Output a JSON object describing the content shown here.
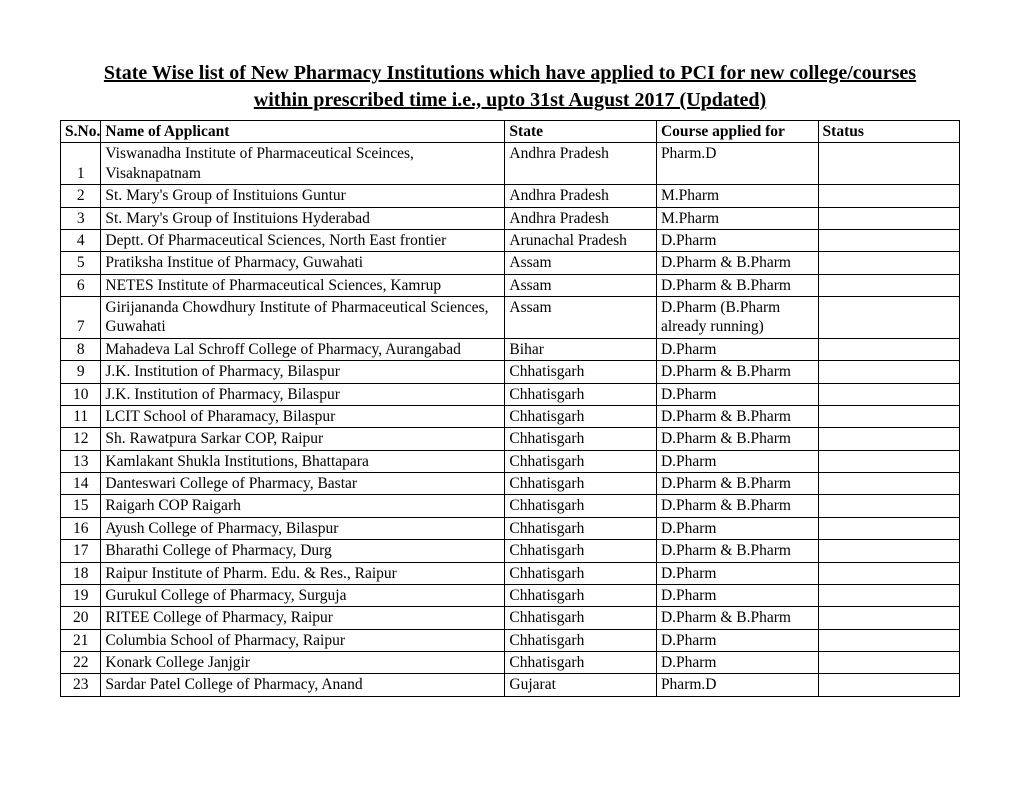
{
  "title_line1": "State Wise list of New Pharmacy Institutions which have applied to PCI for new college/courses",
  "title_line2": "within prescribed time i.e., upto 31st August 2017 (Updated)",
  "table": {
    "columns": [
      "S.No.",
      "Name of Applicant",
      "State",
      "Course applied for",
      "Status"
    ],
    "rows": [
      {
        "sno": "1",
        "name": "Viswanadha Institute of Pharmaceutical Sceinces, Visaknapatnam",
        "state": "Andhra Pradesh",
        "course": "Pharm.D",
        "status": ""
      },
      {
        "sno": "2",
        "name": "St. Mary's Group of Instituions Guntur",
        "state": "Andhra Pradesh",
        "course": "M.Pharm",
        "status": ""
      },
      {
        "sno": "3",
        "name": "St. Mary's Group of Instituions Hyderabad",
        "state": "Andhra Pradesh",
        "course": "M.Pharm",
        "status": ""
      },
      {
        "sno": "4",
        "name": "Deptt. Of Pharmaceutical Sciences, North East frontier",
        "state": "Arunachal Pradesh",
        "course": "D.Pharm",
        "status": ""
      },
      {
        "sno": "5",
        "name": "Pratiksha Institue of Pharmacy, Guwahati",
        "state": "Assam",
        "course": "D.Pharm & B.Pharm",
        "status": ""
      },
      {
        "sno": "6",
        "name": "NETES Institute of Pharmaceutical Sciences, Kamrup",
        "state": "Assam",
        "course": "D.Pharm & B.Pharm",
        "status": ""
      },
      {
        "sno": "7",
        "name": "Girijananda Chowdhury Institute of Pharmaceutical Sciences, Guwahati",
        "state": "Assam",
        "course": "D.Pharm (B.Pharm already running)",
        "status": ""
      },
      {
        "sno": "8",
        "name": "Mahadeva Lal Schroff College of Pharmacy, Aurangabad",
        "state": "Bihar",
        "course": "D.Pharm",
        "status": ""
      },
      {
        "sno": "9",
        "name": "J.K. Institution of Pharmacy,  Bilaspur",
        "state": "Chhatisgarh",
        "course": "D.Pharm & B.Pharm",
        "status": ""
      },
      {
        "sno": "10",
        "name": "J.K. Institution of Pharmacy,  Bilaspur",
        "state": "Chhatisgarh",
        "course": "D.Pharm",
        "status": ""
      },
      {
        "sno": "11",
        "name": "LCIT School of Pharamacy, Bilaspur",
        "state": "Chhatisgarh",
        "course": "D.Pharm & B.Pharm",
        "status": ""
      },
      {
        "sno": "12",
        "name": "Sh. Rawatpura Sarkar COP, Raipur",
        "state": "Chhatisgarh",
        "course": "D.Pharm & B.Pharm",
        "status": ""
      },
      {
        "sno": "13",
        "name": "Kamlakant Shukla Institutions, Bhattapara",
        "state": "Chhatisgarh",
        "course": "D.Pharm",
        "status": ""
      },
      {
        "sno": "14",
        "name": "Danteswari College of Pharmacy, Bastar",
        "state": "Chhatisgarh",
        "course": "D.Pharm & B.Pharm",
        "status": ""
      },
      {
        "sno": "15",
        "name": "Raigarh COP Raigarh",
        "state": "Chhatisgarh",
        "course": "D.Pharm & B.Pharm",
        "status": ""
      },
      {
        "sno": "16",
        "name": "Ayush College of Pharmacy, Bilaspur",
        "state": "Chhatisgarh",
        "course": "D.Pharm",
        "status": ""
      },
      {
        "sno": "17",
        "name": "Bharathi College of Pharmacy, Durg",
        "state": "Chhatisgarh",
        "course": "D.Pharm & B.Pharm",
        "status": ""
      },
      {
        "sno": "18",
        "name": "Raipur Institute of Pharm. Edu. & Res., Raipur",
        "state": "Chhatisgarh",
        "course": "D.Pharm",
        "status": ""
      },
      {
        "sno": "19",
        "name": "Gurukul College of Pharmacy, Surguja",
        "state": "Chhatisgarh",
        "course": "D.Pharm",
        "status": ""
      },
      {
        "sno": "20",
        "name": "RITEE College of Pharmacy, Raipur",
        "state": "Chhatisgarh",
        "course": "D.Pharm & B.Pharm",
        "status": ""
      },
      {
        "sno": "21",
        "name": "Columbia School of Pharmacy, Raipur",
        "state": "Chhatisgarh",
        "course": "D.Pharm",
        "status": ""
      },
      {
        "sno": "22",
        "name": "Konark College Janjgir",
        "state": "Chhatisgarh",
        "course": "D.Pharm",
        "status": ""
      },
      {
        "sno": "23",
        "name": "Sardar Patel College of Pharmacy, Anand",
        "state": "Gujarat",
        "course": "Pharm.D",
        "status": ""
      }
    ]
  }
}
